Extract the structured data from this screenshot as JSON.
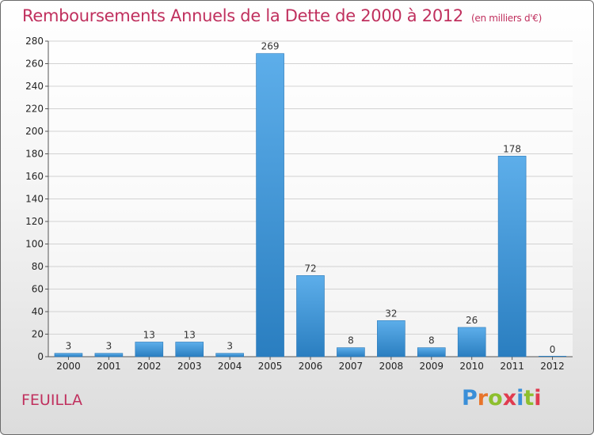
{
  "header": {
    "title": "Remboursements Annuels de la Dette de 2000 à 2012",
    "unit": "(en milliers d'€)"
  },
  "footer": {
    "commune": "FEUILLA",
    "logo": [
      "P",
      "r",
      "o",
      "x",
      "i",
      "t",
      "i"
    ]
  },
  "colors": {
    "title": "#c0305e",
    "bar_light": "#5daeea",
    "bar_dark": "#2a7ec0",
    "logo": [
      "#3a8fd8",
      "#e8742a",
      "#8dbf2e",
      "#e03b4f",
      "#3a8fd8",
      "#8dbf2e",
      "#e03b4f"
    ]
  },
  "chart_data": {
    "type": "bar",
    "categories": [
      "2000",
      "2001",
      "2002",
      "2003",
      "2004",
      "2005",
      "2006",
      "2007",
      "2008",
      "2009",
      "2010",
      "2011",
      "2012"
    ],
    "values": [
      3,
      3,
      13,
      13,
      3,
      269,
      72,
      8,
      32,
      8,
      26,
      178,
      0
    ],
    "data_labels": [
      "3",
      "3",
      "13",
      "13",
      "3",
      "269",
      "72",
      "8",
      "32",
      "8",
      "26",
      "178",
      "0"
    ],
    "ylim": [
      0,
      280
    ],
    "yticks": [
      "0",
      "20",
      "40",
      "60",
      "80",
      "100",
      "120",
      "140",
      "160",
      "180",
      "200",
      "220",
      "240",
      "260",
      "280"
    ],
    "grid": true
  }
}
